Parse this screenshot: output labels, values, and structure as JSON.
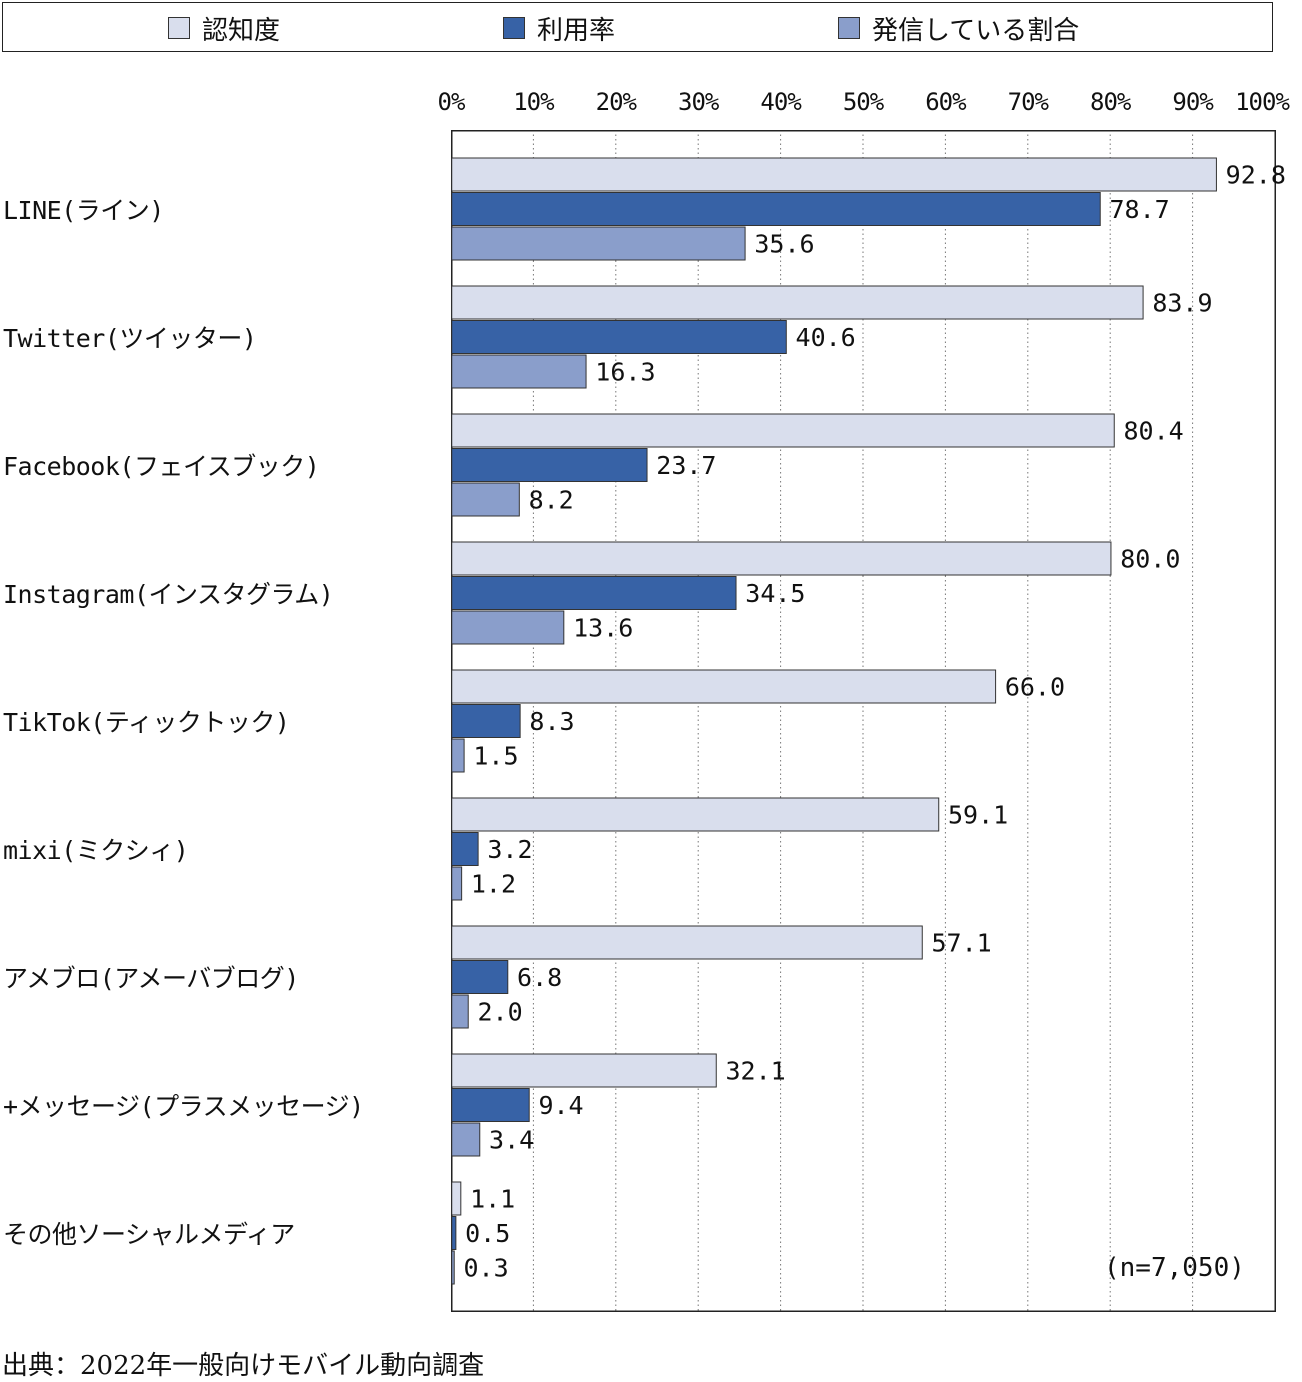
{
  "legend": {
    "items": [
      {
        "label": "認知度",
        "color": "#d9deed"
      },
      {
        "label": "利用率",
        "color": "#3762a6"
      },
      {
        "label": "発信している割合",
        "color": "#8a9ecb"
      }
    ]
  },
  "chart_data": {
    "type": "bar",
    "orientation": "horizontal",
    "xlim": [
      0,
      100
    ],
    "xticks": [
      "0%",
      "10%",
      "20%",
      "30%",
      "40%",
      "50%",
      "60%",
      "70%",
      "80%",
      "90%",
      "100%"
    ],
    "grid": "vertical dotted",
    "categories": [
      "LINE(ライン)",
      "Twitter(ツイッター)",
      "Facebook(フェイスブック)",
      "Instagram(インスタグラム)",
      "TikTok(ティックトック)",
      "mixi(ミクシィ)",
      "アメブロ(アメーバブログ)",
      "+メッセージ(プラスメッセージ)",
      "その他ソーシャルメディア"
    ],
    "series": [
      {
        "name": "認知度",
        "color": "#d9deed",
        "values": [
          92.8,
          83.9,
          80.4,
          80.0,
          66.0,
          59.1,
          57.1,
          32.1,
          1.1
        ],
        "labels": [
          "92.8",
          "83.9",
          "80.4",
          "80.0",
          "66.0",
          "59.1",
          "57.1",
          "32.1",
          "1.1"
        ]
      },
      {
        "name": "利用率",
        "color": "#3762a6",
        "values": [
          78.7,
          40.6,
          23.7,
          34.5,
          8.3,
          3.2,
          6.8,
          9.4,
          0.5
        ],
        "labels": [
          "78.7",
          "40.6",
          "23.7",
          "34.5",
          "8.3",
          "3.2",
          "6.8",
          "9.4",
          "0.5"
        ]
      },
      {
        "name": "発信している割合",
        "color": "#8a9ecb",
        "values": [
          35.6,
          16.3,
          8.2,
          13.6,
          1.5,
          1.2,
          2.0,
          3.4,
          0.3
        ],
        "labels": [
          "35.6",
          "16.3",
          "8.2",
          "13.6",
          "1.5",
          "1.2",
          "2.0",
          "3.4",
          "0.3"
        ]
      }
    ],
    "annotation": "(n=7,050)"
  },
  "source": "出典：2022年一般向けモバイル動向調査"
}
